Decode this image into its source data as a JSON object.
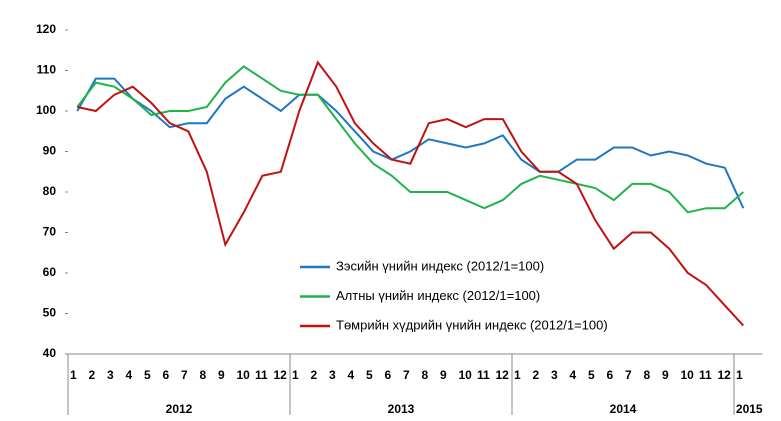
{
  "chart_data": {
    "type": "line",
    "categories": [
      "1",
      "2",
      "3",
      "4",
      "5",
      "6",
      "7",
      "8",
      "9",
      "10",
      "11",
      "12",
      "1",
      "2",
      "3",
      "4",
      "5",
      "6",
      "7",
      "8",
      "9",
      "10",
      "11",
      "12",
      "1",
      "2",
      "3",
      "4",
      "5",
      "6",
      "7",
      "8",
      "9",
      "10",
      "11",
      "12",
      "1"
    ],
    "years": [
      "2012",
      "2013",
      "2014",
      "2015"
    ],
    "series": [
      {
        "name": "Зэсийн үнийн индекс (2012/1=100)",
        "color": "#1f77c4",
        "values": [
          100,
          108,
          108,
          103,
          100,
          96,
          97,
          97,
          103,
          106,
          103,
          100,
          104,
          104,
          100,
          95,
          90,
          88,
          90,
          93,
          92,
          91,
          92,
          94,
          88,
          85,
          85,
          88,
          88,
          91,
          91,
          89,
          90,
          89,
          87,
          86,
          76
        ]
      },
      {
        "name": "Алтны үнийн индекс (2012/1=100)",
        "color": "#1fb44a",
        "values": [
          101,
          107,
          106,
          103,
          99,
          100,
          100,
          101,
          107,
          111,
          108,
          105,
          104,
          104,
          98,
          92,
          87,
          84,
          80,
          80,
          80,
          78,
          76,
          78,
          82,
          84,
          83,
          82,
          81,
          78,
          82,
          82,
          80,
          75,
          76,
          76,
          80
        ]
      },
      {
        "name": "Төмрийн хүдрийн үнийн индекс (2012/1=100)",
        "color": "#c0120f",
        "values": [
          101,
          100,
          104,
          106,
          102,
          97,
          95,
          85,
          67,
          75,
          84,
          85,
          100,
          112,
          106,
          97,
          92,
          88,
          87,
          97,
          98,
          96,
          98,
          98,
          90,
          85,
          85,
          82,
          73,
          66,
          70,
          70,
          66,
          60,
          57,
          52,
          47
        ]
      }
    ],
    "ylim": [
      40,
      120
    ],
    "yticks": [
      40,
      50,
      60,
      70,
      80,
      90,
      100,
      110,
      120
    ],
    "grid": false
  }
}
